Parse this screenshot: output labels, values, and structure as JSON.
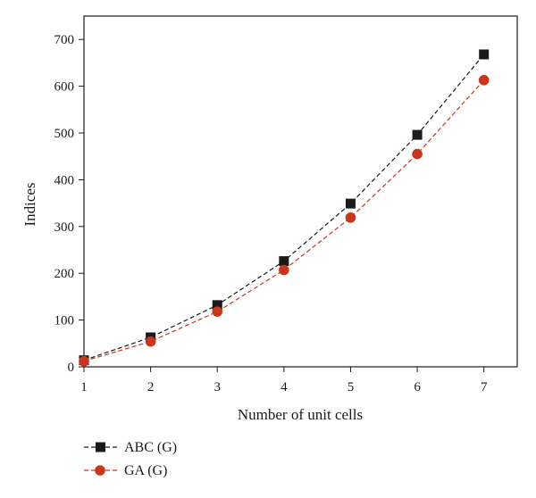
{
  "chart_data": {
    "type": "line",
    "xlabel": "Number of unit cells",
    "ylabel": "Indices",
    "x": [
      1,
      2,
      3,
      4,
      5,
      6,
      7
    ],
    "xlim": [
      1,
      7.5
    ],
    "ylim": [
      0,
      750
    ],
    "xticks": [
      "1",
      "2",
      "3",
      "4",
      "5",
      "6",
      "7"
    ],
    "yticks": [
      "0",
      "100",
      "200",
      "300",
      "400",
      "500",
      "600",
      "700"
    ],
    "grid": false,
    "legend_position": "bottom-left",
    "series": [
      {
        "name": "ABC (G)",
        "values": [
          14,
          63,
          132,
          226,
          349,
          496,
          668
        ],
        "color": "#1a1a1a",
        "marker": "square",
        "line_style": "dashed"
      },
      {
        "name": "GA (G)",
        "values": [
          12,
          54,
          118,
          207,
          319,
          455,
          613
        ],
        "color": "#c8361d",
        "marker": "circle",
        "line_style": "dashed"
      }
    ]
  }
}
